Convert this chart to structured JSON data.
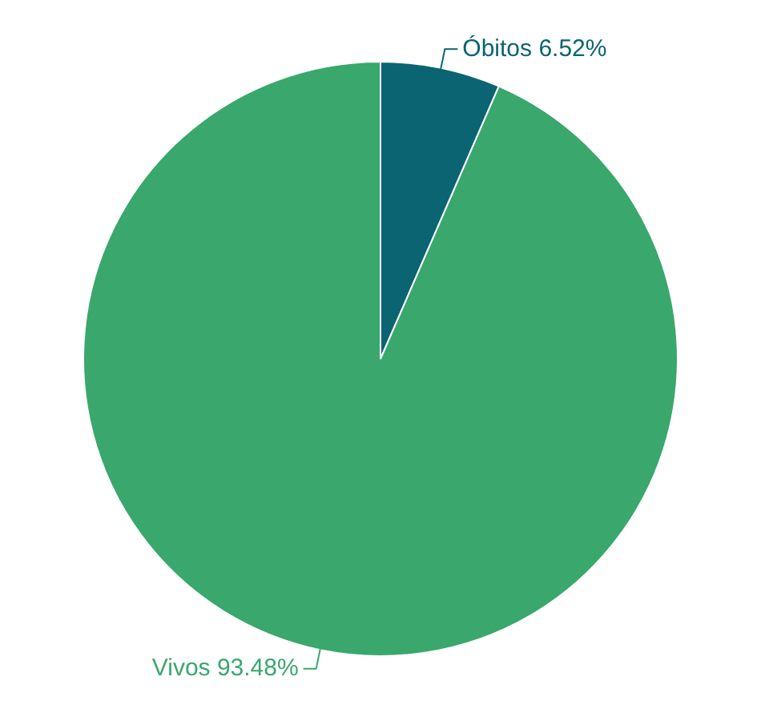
{
  "chart_data": {
    "type": "pie",
    "categories": [
      "Óbitos",
      "Vivos"
    ],
    "values": [
      6.52,
      93.48
    ],
    "value_labels": [
      "6.52%",
      "93.48%"
    ],
    "colors": [
      "#0b6472",
      "#3aa76d"
    ],
    "legend": false
  }
}
